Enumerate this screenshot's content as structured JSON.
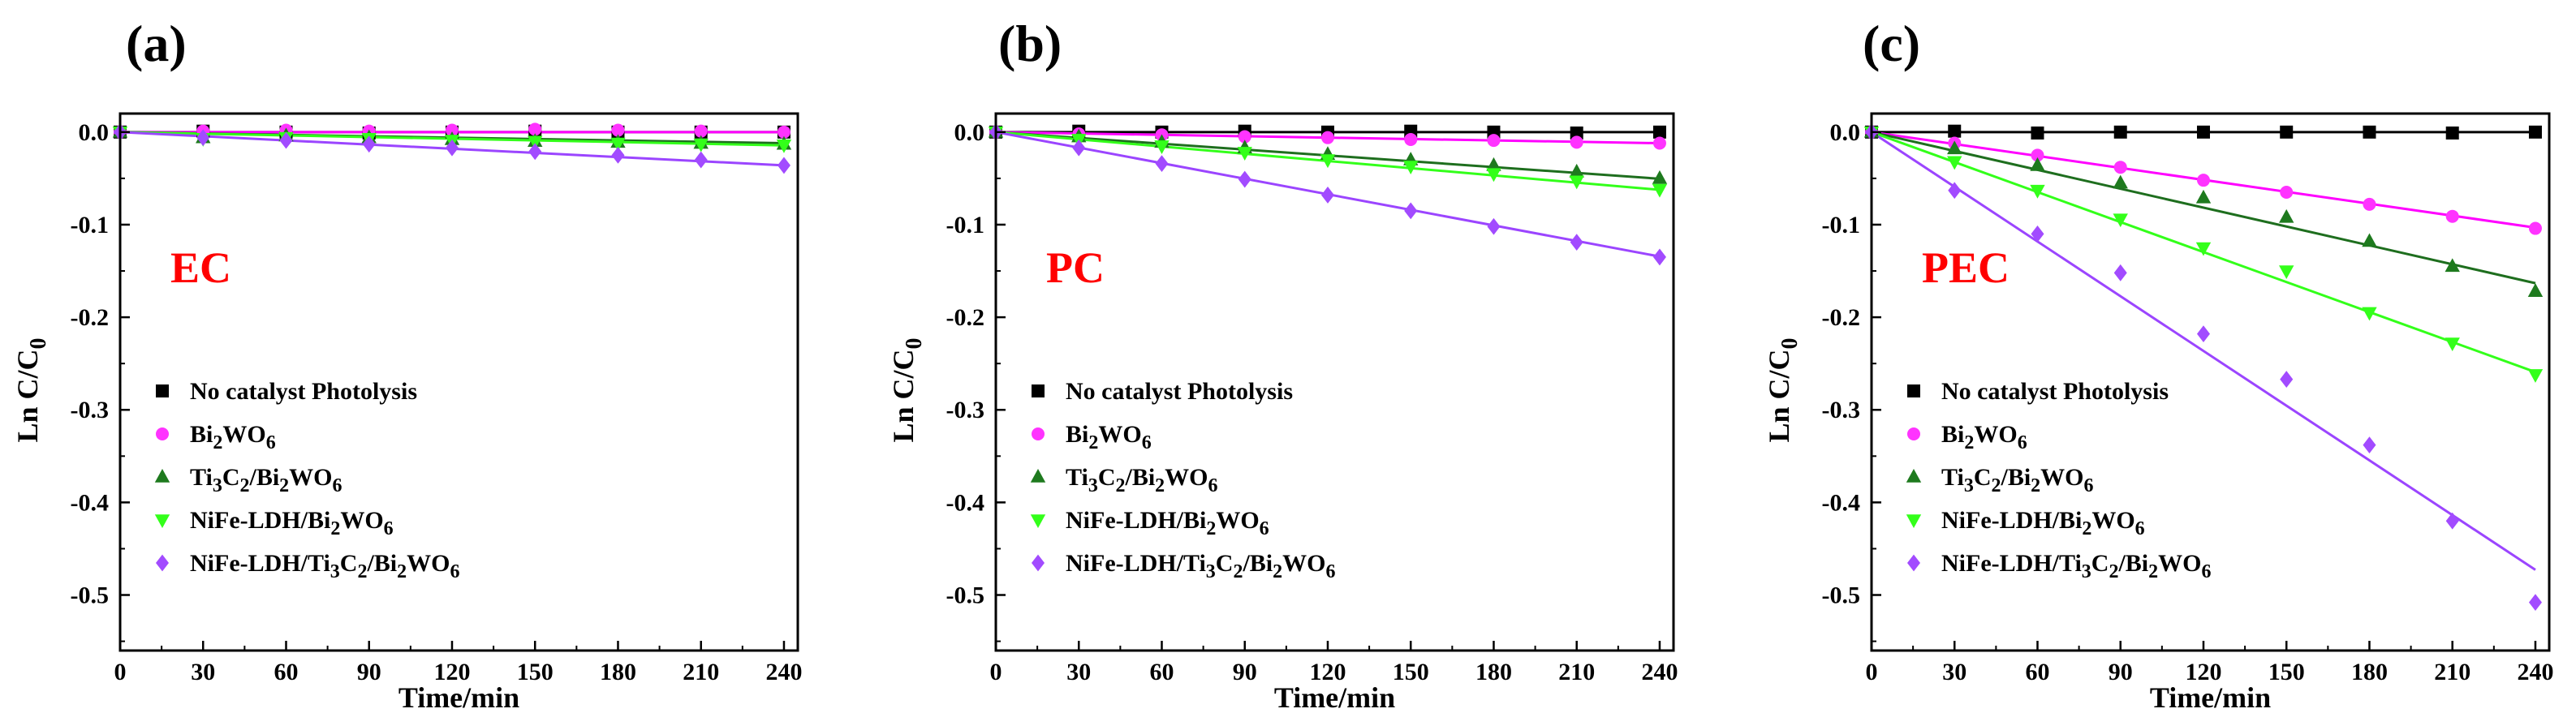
{
  "chart_data": [
    {
      "type": "scatter",
      "panel": "(a)",
      "mode_label": "EC",
      "xlabel": "Time/min",
      "ylabel": "Ln C/C",
      "ylabel_sub": "0",
      "xlim": [
        0,
        245
      ],
      "ylim": [
        -0.56,
        0.02
      ],
      "x_ticks": [
        0,
        30,
        60,
        90,
        120,
        150,
        180,
        210,
        240
      ],
      "y_ticks": [
        0.0,
        -0.1,
        -0.2,
        -0.3,
        -0.4,
        -0.5
      ],
      "y_tick_labels": [
        "0.0",
        "-0.1",
        "-0.2",
        "-0.3",
        "-0.4",
        "-0.5"
      ],
      "legend_position": "bottom-left",
      "x": [
        0,
        30,
        60,
        90,
        120,
        150,
        180,
        210,
        240
      ],
      "series": [
        {
          "name": "No catalyst  Photolysis",
          "values": [
            0,
            0.001,
            0,
            -0.001,
            0,
            0.001,
            0,
            0,
            0
          ],
          "slope": 0
        },
        {
          "name": "Bi2WO6",
          "values": [
            0,
            0.001,
            0.002,
            0.001,
            0.002,
            0.003,
            0.002,
            0.001,
            0.0
          ],
          "slope": 0
        },
        {
          "name": "Ti3C2/Bi2WO6",
          "values": [
            0,
            -0.006,
            -0.004,
            -0.006,
            -0.008,
            -0.01,
            -0.011,
            -0.012,
            -0.013
          ],
          "slope": -5e-05
        },
        {
          "name": "NiFe-LDH/Bi2WO6",
          "values": [
            0,
            -0.007,
            -0.006,
            -0.007,
            -0.009,
            -0.01,
            -0.012,
            -0.013,
            -0.014
          ],
          "slope": -6e-05
        },
        {
          "name": "NiFe-LDH/Ti3C2/Bi2WO6",
          "values": [
            0,
            -0.006,
            -0.009,
            -0.013,
            -0.017,
            -0.021,
            -0.025,
            -0.03,
            -0.036
          ],
          "slope": -0.00015
        }
      ]
    },
    {
      "type": "scatter",
      "panel": "(b)",
      "mode_label": "PC",
      "xlabel": "Time/min",
      "ylabel": "Ln C/C",
      "ylabel_sub": "0",
      "xlim": [
        0,
        245
      ],
      "ylim": [
        -0.56,
        0.02
      ],
      "x_ticks": [
        0,
        30,
        60,
        90,
        120,
        150,
        180,
        210,
        240
      ],
      "y_ticks": [
        0.0,
        -0.1,
        -0.2,
        -0.3,
        -0.4,
        -0.5
      ],
      "y_tick_labels": [
        "0.0",
        "-0.1",
        "-0.2",
        "-0.3",
        "-0.4",
        "-0.5"
      ],
      "legend_position": "bottom-left",
      "x": [
        0,
        30,
        60,
        90,
        120,
        150,
        180,
        210,
        240
      ],
      "series": [
        {
          "name": "No catalyst  Photolysis",
          "values": [
            0,
            0.001,
            0,
            0.001,
            0,
            0.001,
            0,
            -0.001,
            0.0
          ],
          "slope": 0
        },
        {
          "name": "Bi2WO6",
          "values": [
            0,
            -0.002,
            -0.003,
            -0.005,
            -0.006,
            -0.008,
            -0.009,
            -0.011,
            -0.012
          ],
          "slope": -5e-05
        },
        {
          "name": "Ti3C2/Bi2WO6",
          "values": [
            0,
            -0.005,
            -0.011,
            -0.017,
            -0.024,
            -0.03,
            -0.036,
            -0.043,
            -0.05
          ],
          "slope": -0.00021
        },
        {
          "name": "NiFe-LDH/Bi2WO6",
          "values": [
            0,
            -0.008,
            -0.015,
            -0.022,
            -0.03,
            -0.037,
            -0.045,
            -0.053,
            -0.062
          ],
          "slope": -0.00026
        },
        {
          "name": "NiFe-LDH/Ti3C2/Bi2WO6",
          "values": [
            0,
            -0.017,
            -0.034,
            -0.051,
            -0.068,
            -0.085,
            -0.102,
            -0.119,
            -0.135
          ],
          "slope": -0.00056
        }
      ]
    },
    {
      "type": "scatter",
      "panel": "(c)",
      "mode_label": "PEC",
      "xlabel": "Time/min",
      "ylabel": "Ln C/C",
      "ylabel_sub": "0",
      "xlim": [
        0,
        245
      ],
      "ylim": [
        -0.56,
        0.02
      ],
      "x_ticks": [
        0,
        30,
        60,
        90,
        120,
        150,
        180,
        210,
        240
      ],
      "y_ticks": [
        0.0,
        -0.1,
        -0.2,
        -0.3,
        -0.4,
        -0.5
      ],
      "y_tick_labels": [
        "0.0",
        "-0.1",
        "-0.2",
        "-0.3",
        "-0.4",
        "-0.5"
      ],
      "legend_position": "bottom-left",
      "x": [
        0,
        30,
        60,
        90,
        120,
        150,
        180,
        210,
        240
      ],
      "series": [
        {
          "name": "No catalyst  Photolysis",
          "values": [
            0,
            0.001,
            -0.001,
            0,
            0,
            0,
            0,
            -0.001,
            0.0
          ],
          "slope": 0
        },
        {
          "name": "Bi2WO6",
          "values": [
            0,
            -0.012,
            -0.025,
            -0.038,
            -0.052,
            -0.065,
            -0.078,
            -0.091,
            -0.104
          ],
          "slope": -0.00043
        },
        {
          "name": "Ti3C2/Bi2WO6",
          "values": [
            0,
            -0.018,
            -0.036,
            -0.055,
            -0.071,
            -0.092,
            -0.118,
            -0.145,
            -0.172
          ],
          "slope": -0.00068
        },
        {
          "name": "NiFe-LDH/Bi2WO6",
          "values": [
            0,
            -0.032,
            -0.063,
            -0.094,
            -0.125,
            -0.15,
            -0.195,
            -0.228,
            -0.262
          ],
          "slope": -0.00108
        },
        {
          "name": "NiFe-LDH/Ti3C2/Bi2WO6",
          "values": [
            0,
            -0.063,
            -0.11,
            -0.152,
            -0.218,
            -0.267,
            -0.338,
            -0.42,
            -0.508
          ],
          "slope": -0.00197
        }
      ]
    }
  ],
  "series_style": [
    {
      "color": "#000000",
      "line": "#000000",
      "marker": "square"
    },
    {
      "color": "#ff33ff",
      "line": "#ff00ff",
      "marker": "circle"
    },
    {
      "color": "#1e7a1e",
      "line": "#1e6e1e",
      "marker": "triangle-up"
    },
    {
      "color": "#33ff1a",
      "line": "#33ff1a",
      "marker": "triangle-down"
    },
    {
      "color": "#a24bff",
      "line": "#9b45ff",
      "marker": "diamond"
    }
  ],
  "mode_label_color": "#ff0000"
}
